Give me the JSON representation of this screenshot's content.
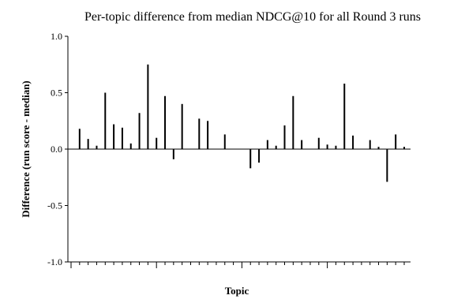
{
  "chart_data": {
    "type": "bar",
    "title": "Per-topic difference from median NDCG@10 for all Round 3 runs",
    "xlabel": "Topic",
    "ylabel": "Difference (run score - median)",
    "ylim": [
      -1.0,
      1.0
    ],
    "ytick_labels": [
      "1.0",
      "0.5",
      "0.0",
      "-0.5",
      "-1.0"
    ],
    "ytick_values": [
      1.0,
      0.5,
      0.0,
      -0.5,
      -1.0
    ],
    "grid": false,
    "legend": "none",
    "colors": {
      "bar": "#000000",
      "axis": "#000000",
      "background": "#ffffff"
    },
    "x_topics_range": [
      1,
      40
    ],
    "series": [
      {
        "values": [
          0.0,
          0.18,
          0.09,
          0.03,
          0.5,
          0.22,
          0.19,
          0.05,
          0.32,
          0.75,
          0.1,
          0.47,
          -0.09,
          0.4,
          0.0,
          0.27,
          0.25,
          0.0,
          0.13,
          0.0,
          0.0,
          -0.17,
          -0.12,
          0.08,
          0.03,
          0.21,
          0.47,
          0.08,
          0.0,
          0.1,
          0.04,
          0.03,
          0.58,
          0.12,
          0.0,
          0.08,
          0.02,
          -0.29,
          0.13,
          0.02
        ]
      }
    ]
  }
}
